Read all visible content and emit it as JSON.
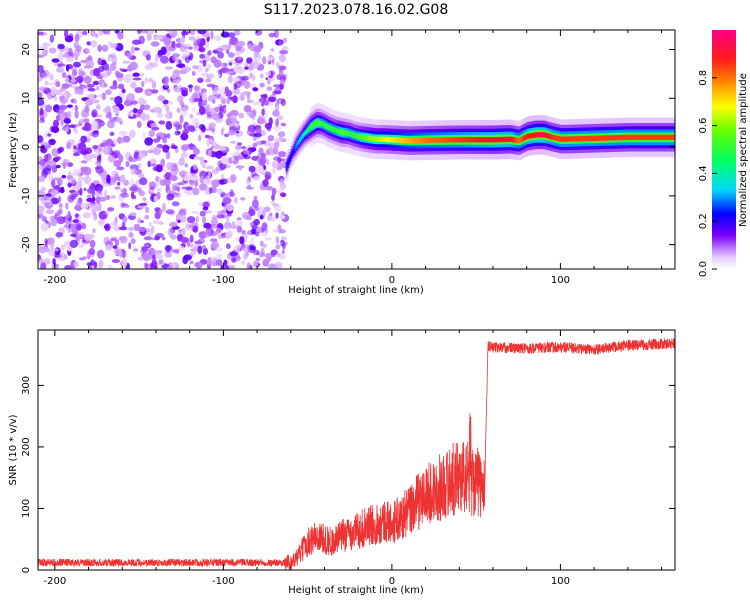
{
  "chart_data": [
    {
      "type": "heatmap",
      "title": "S117.2023.078.16.02.G08",
      "xlabel": "Height of straight line (km)",
      "ylabel": "Frequency (Hz)",
      "xlim": [
        -210,
        168
      ],
      "ylim": [
        -25,
        24
      ],
      "xticks": [
        -200,
        -100,
        0,
        100
      ],
      "yticks": [
        -20,
        -10,
        0,
        10,
        20
      ],
      "colorbar": {
        "label": "Normalized spectral amplitude",
        "range": [
          0,
          1
        ],
        "ticks": [
          "0.0",
          "0.2",
          "0.4",
          "0.6",
          "0.8"
        ],
        "colormap": "hsv-like (white → violet → blue → cyan → green → yellow → orange → red → magenta)"
      },
      "noise_region_x": [
        -210,
        -63
      ],
      "ridge": {
        "x": [
          -63,
          -60,
          -57,
          -53,
          -49,
          -45,
          -42,
          -38,
          -34,
          -30,
          -26,
          -22,
          -18,
          -14,
          -10,
          -6,
          0,
          10,
          20,
          40,
          60,
          70,
          75,
          80,
          85,
          90,
          95,
          100,
          120,
          140,
          168
        ],
        "freq": [
          -4,
          -1.5,
          0.5,
          2.5,
          4,
          5,
          4.8,
          4,
          3.4,
          3,
          2.8,
          2.3,
          2,
          1.8,
          1.6,
          1.6,
          1.5,
          1.3,
          1.4,
          1.5,
          1.5,
          1.6,
          1.3,
          2.2,
          2.5,
          2.5,
          2,
          1.6,
          1.8,
          2,
          2
        ],
        "amp": [
          0.25,
          0.2,
          0.3,
          0.35,
          0.5,
          0.55,
          0.5,
          0.5,
          0.5,
          0.55,
          0.5,
          0.5,
          0.55,
          0.6,
          0.62,
          0.65,
          0.7,
          0.75,
          0.8,
          0.85,
          0.9,
          0.9,
          0.8,
          0.9,
          0.92,
          0.92,
          0.85,
          0.85,
          0.85,
          0.85,
          0.85
        ]
      }
    },
    {
      "type": "line",
      "xlabel": "Height of straight line (km)",
      "ylabel": "SNR (10 * v/v)",
      "xlim": [
        -210,
        168
      ],
      "ylim": [
        0,
        390
      ],
      "xticks": [
        -200,
        -100,
        0,
        100
      ],
      "yticks": [
        0,
        100,
        200,
        300
      ],
      "series": [
        {
          "color": "#ee3333",
          "x": [
            -210,
            -150,
            -100,
            -70,
            -63,
            -58,
            -55,
            -50,
            -45,
            -40,
            -35,
            -30,
            -25,
            -20,
            -15,
            -10,
            -5,
            0,
            5,
            10,
            15,
            20,
            25,
            30,
            35,
            40,
            45,
            50,
            53,
            55,
            57,
            60,
            80,
            100,
            120,
            140,
            168
          ],
          "y": [
            12,
            12,
            12,
            12,
            12,
            15,
            25,
            45,
            55,
            50,
            45,
            55,
            60,
            65,
            70,
            75,
            80,
            75,
            85,
            95,
            110,
            120,
            130,
            135,
            145,
            155,
            150,
            145,
            135,
            125,
            365,
            362,
            360,
            362,
            358,
            365,
            368
          ]
        }
      ]
    }
  ]
}
